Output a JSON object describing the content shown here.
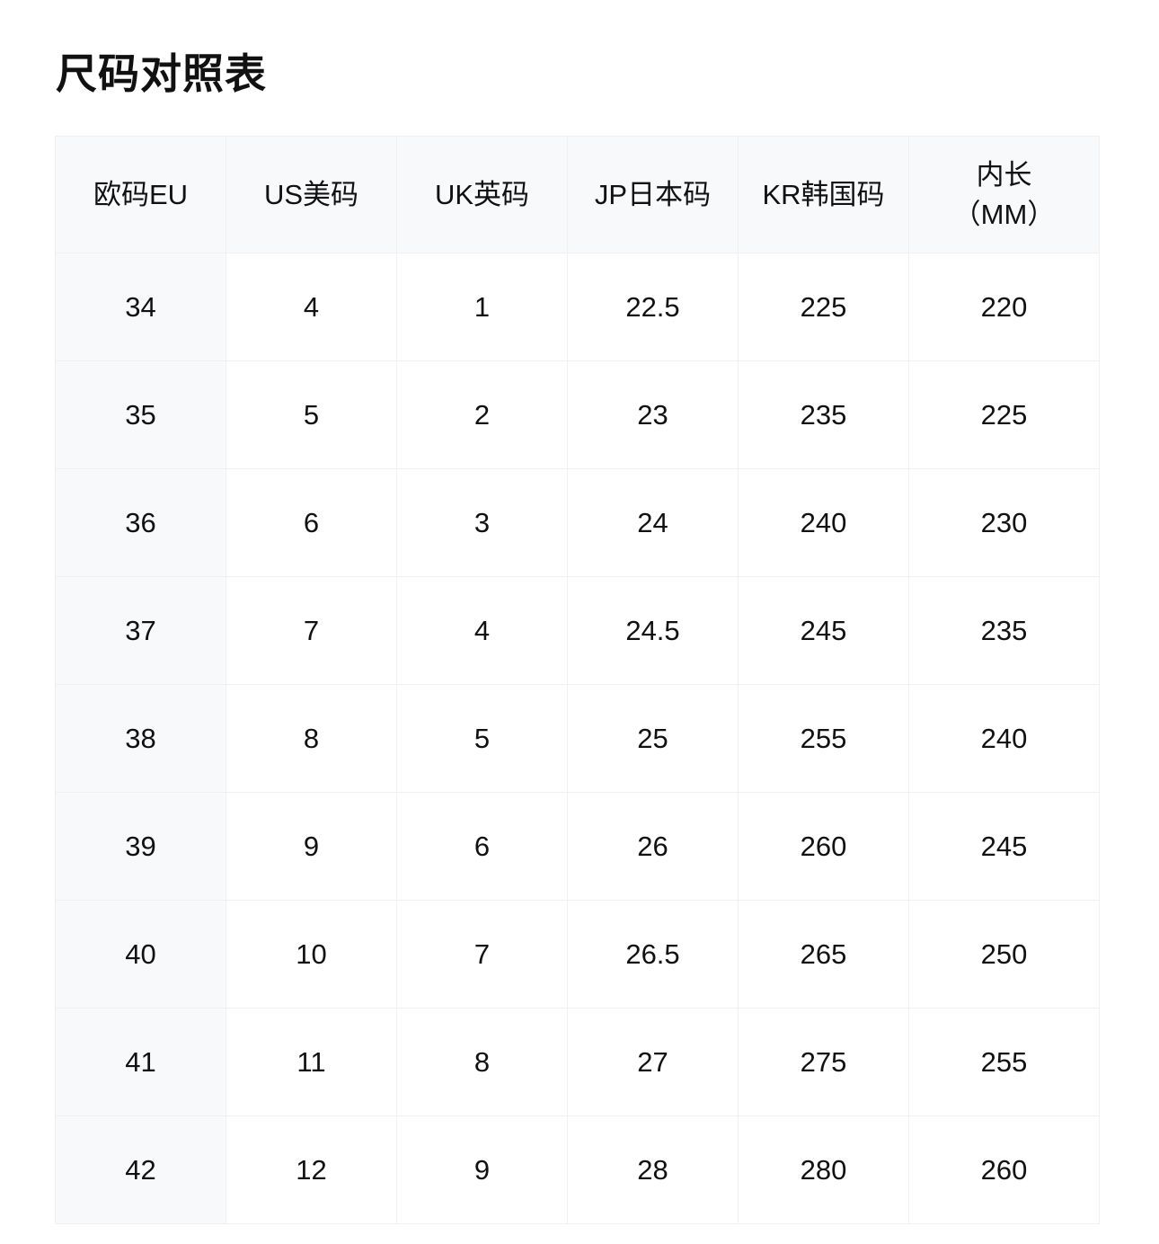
{
  "title": "尺码对照表",
  "headers": [
    "欧码EU",
    "US美码",
    "UK英码",
    "JP日本码",
    "KR韩国码",
    "内长（MM）"
  ],
  "rows": [
    [
      "34",
      "4",
      "1",
      "22.5",
      "225",
      "220"
    ],
    [
      "35",
      "5",
      "2",
      "23",
      "235",
      "225"
    ],
    [
      "36",
      "6",
      "3",
      "24",
      "240",
      "230"
    ],
    [
      "37",
      "7",
      "4",
      "24.5",
      "245",
      "235"
    ],
    [
      "38",
      "8",
      "5",
      "25",
      "255",
      "240"
    ],
    [
      "39",
      "9",
      "6",
      "26",
      "260",
      "245"
    ],
    [
      "40",
      "10",
      "7",
      "26.5",
      "265",
      "250"
    ],
    [
      "41",
      "11",
      "8",
      "27",
      "275",
      "255"
    ],
    [
      "42",
      "12",
      "9",
      "28",
      "280",
      "260"
    ]
  ]
}
